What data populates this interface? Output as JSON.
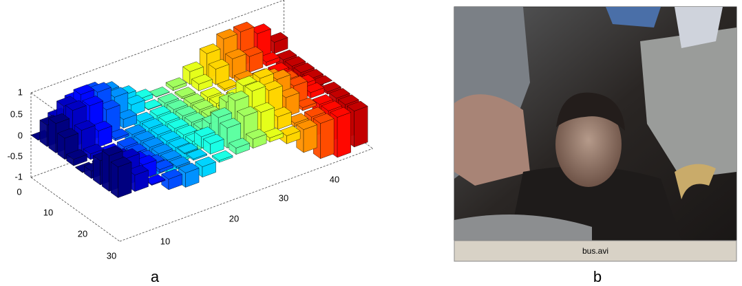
{
  "figure": {
    "panel_a": {
      "label": "a",
      "zticks": [
        "1",
        "0.5",
        "0",
        "-0.5",
        "-1"
      ],
      "yticks": [
        "0",
        "10",
        "20",
        "30"
      ],
      "xticks": [
        "10",
        "20",
        "30",
        "40"
      ]
    },
    "panel_b": {
      "label": "b",
      "status": "bus.avi"
    }
  }
}
